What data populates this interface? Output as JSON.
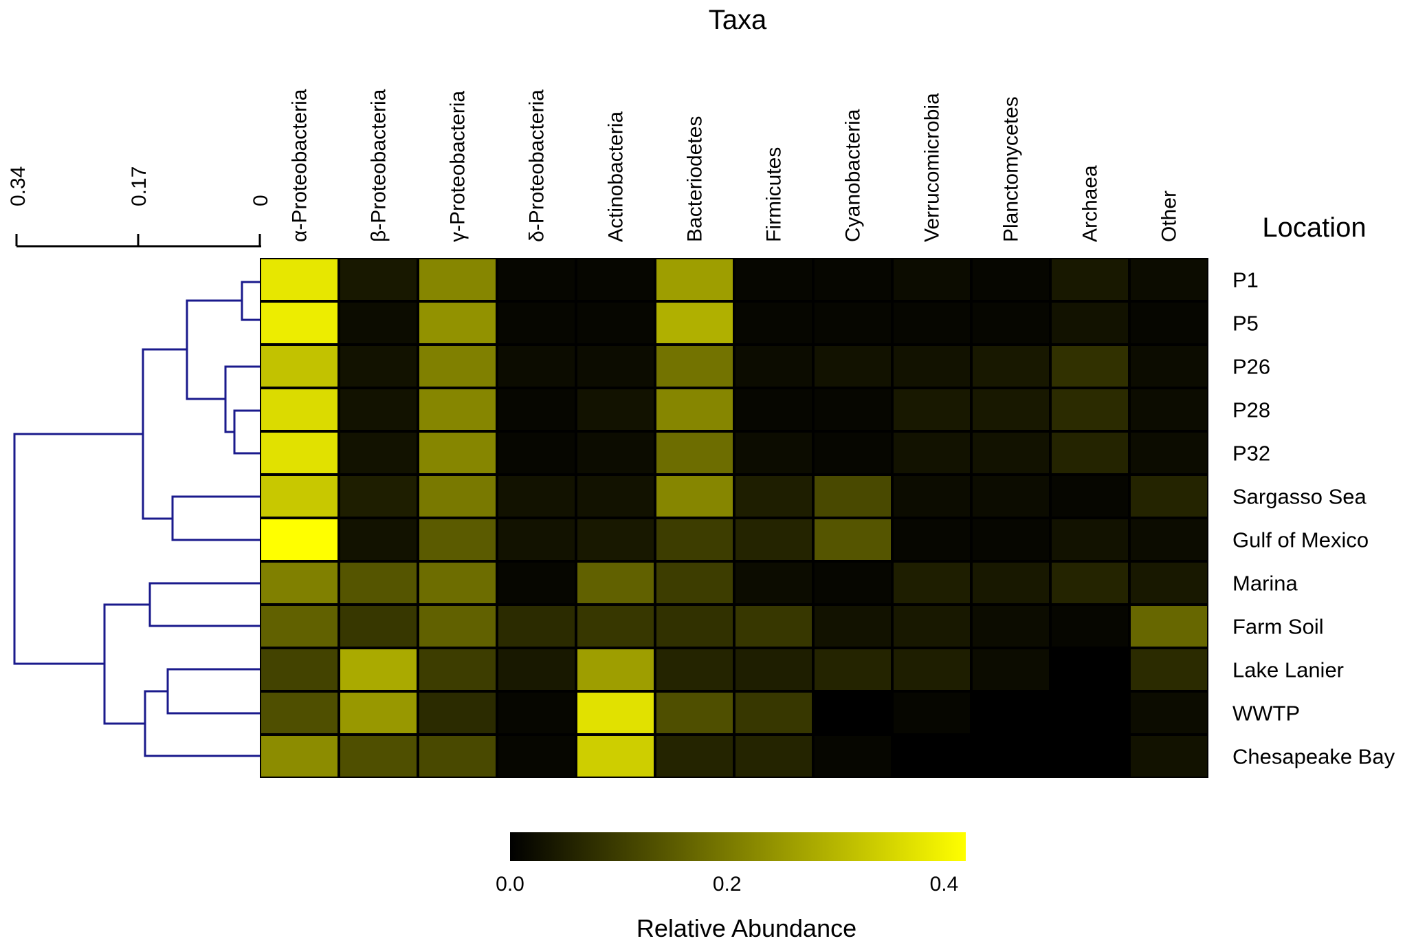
{
  "chart_data": {
    "type": "heatmap",
    "title": "Taxa",
    "column_axis_label": "Taxa",
    "row_axis_label": "Location",
    "colorbar": {
      "label": "Relative Abundance",
      "range": [
        0.0,
        0.42
      ],
      "ticks": [
        0.0,
        0.2,
        0.4
      ],
      "tick_labels": [
        "0.0",
        "0.2",
        "0.4"
      ],
      "colors": [
        "#000000",
        "#ffff00"
      ]
    },
    "dendrogram": {
      "scale_ticks": [
        "0.34",
        "0.17",
        "0"
      ],
      "color": "#1a1a8c"
    },
    "columns": [
      "α-Proteobacteria",
      "β-Proteobacteria",
      "γ-Proteobacteria",
      "δ-Proteobacteria",
      "Actinobacteria",
      "Bacteriodetes",
      "Firmicutes",
      "Cyanobacteria",
      "Verrucomicrobia",
      "Planctomycetes",
      "Archaea",
      "Other"
    ],
    "rows": [
      "P1",
      "P5",
      "P26",
      "P28",
      "P32",
      "Sargasso Sea",
      "Gulf of Mexico",
      "Marina",
      "Farm Soil",
      "Lake Lanier",
      "WWTP",
      "Chesapeake Bay"
    ],
    "values": [
      [
        0.38,
        0.04,
        0.22,
        0.01,
        0.01,
        0.26,
        0.01,
        0.01,
        0.02,
        0.01,
        0.04,
        0.02
      ],
      [
        0.39,
        0.02,
        0.24,
        0.01,
        0.01,
        0.29,
        0.01,
        0.01,
        0.01,
        0.01,
        0.03,
        0.01
      ],
      [
        0.32,
        0.03,
        0.21,
        0.02,
        0.02,
        0.19,
        0.02,
        0.03,
        0.03,
        0.04,
        0.08,
        0.02
      ],
      [
        0.36,
        0.03,
        0.22,
        0.01,
        0.03,
        0.22,
        0.01,
        0.01,
        0.04,
        0.04,
        0.07,
        0.02
      ],
      [
        0.37,
        0.03,
        0.22,
        0.01,
        0.02,
        0.18,
        0.02,
        0.01,
        0.03,
        0.03,
        0.06,
        0.02
      ],
      [
        0.33,
        0.05,
        0.2,
        0.03,
        0.03,
        0.22,
        0.05,
        0.12,
        0.02,
        0.02,
        0.01,
        0.06
      ],
      [
        0.42,
        0.03,
        0.15,
        0.03,
        0.04,
        0.1,
        0.06,
        0.14,
        0.01,
        0.01,
        0.03,
        0.02
      ],
      [
        0.21,
        0.14,
        0.18,
        0.01,
        0.16,
        0.1,
        0.02,
        0.01,
        0.05,
        0.04,
        0.06,
        0.04
      ],
      [
        0.16,
        0.09,
        0.16,
        0.07,
        0.09,
        0.08,
        0.09,
        0.03,
        0.04,
        0.02,
        0.01,
        0.17
      ],
      [
        0.11,
        0.28,
        0.1,
        0.04,
        0.26,
        0.06,
        0.05,
        0.06,
        0.05,
        0.02,
        0.0,
        0.07
      ],
      [
        0.13,
        0.25,
        0.07,
        0.01,
        0.37,
        0.13,
        0.09,
        0.0,
        0.01,
        0.0,
        0.0,
        0.02
      ],
      [
        0.23,
        0.13,
        0.12,
        0.01,
        0.34,
        0.06,
        0.06,
        0.01,
        0.0,
        0.0,
        0.0,
        0.03
      ]
    ]
  }
}
